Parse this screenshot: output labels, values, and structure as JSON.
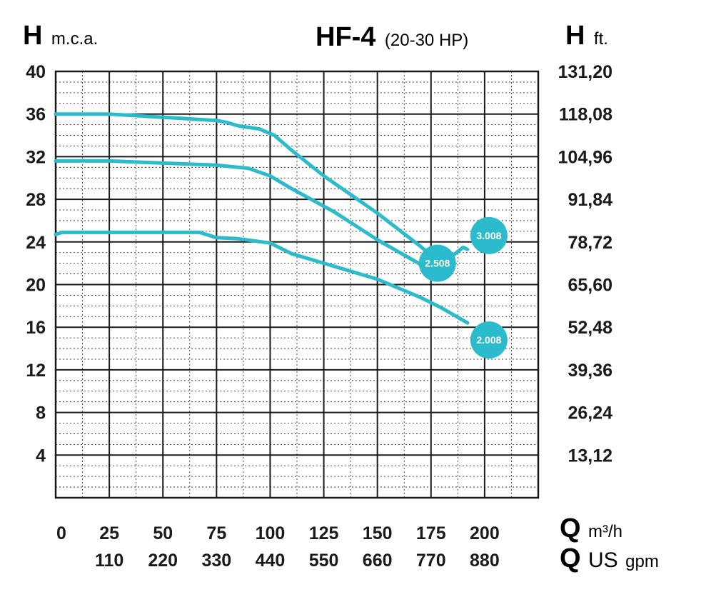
{
  "header": {
    "left_axis_letter": "H",
    "left_axis_unit": "m.c.a.",
    "title": "HF-4",
    "subtitle": "(20-30 HP)",
    "right_axis_letter": "H",
    "right_axis_unit": "ft."
  },
  "footer": {
    "q_letter": "Q",
    "q_unit_1": "m³/h",
    "q_unit_2_main": "US",
    "q_unit_2_small": "gpm"
  },
  "colors": {
    "curve": "#2bbbcc",
    "grid": "#1a1a1a",
    "text": "#1a1a1a"
  },
  "chart_data": {
    "type": "line",
    "title": "HF-4 (20-30 HP)",
    "xlabel": "Q m³/h",
    "xlabel_secondary": "Q US gpm",
    "ylabel": "H m.c.a.",
    "ylabel_right": "H ft.",
    "xlim": [
      0,
      225
    ],
    "ylim": [
      0,
      40
    ],
    "grid": true,
    "x_ticks": [
      {
        "value": 0,
        "label": "0"
      },
      {
        "value": 25,
        "label": "25"
      },
      {
        "value": 50,
        "label": "50"
      },
      {
        "value": 75,
        "label": "75"
      },
      {
        "value": 100,
        "label": "100"
      },
      {
        "value": 125,
        "label": "125"
      },
      {
        "value": 150,
        "label": "150"
      },
      {
        "value": 175,
        "label": "175"
      },
      {
        "value": 200,
        "label": "200"
      }
    ],
    "x_ticks_secondary": [
      {
        "value": 25,
        "label": "110"
      },
      {
        "value": 50,
        "label": "220"
      },
      {
        "value": 75,
        "label": "330"
      },
      {
        "value": 100,
        "label": "440"
      },
      {
        "value": 125,
        "label": "550"
      },
      {
        "value": 150,
        "label": "660"
      },
      {
        "value": 175,
        "label": "770"
      },
      {
        "value": 200,
        "label": "880"
      }
    ],
    "y_ticks_left": [
      {
        "value": 4,
        "label": "4"
      },
      {
        "value": 8,
        "label": "8"
      },
      {
        "value": 12,
        "label": "12"
      },
      {
        "value": 16,
        "label": "16"
      },
      {
        "value": 20,
        "label": "20"
      },
      {
        "value": 24,
        "label": "24"
      },
      {
        "value": 28,
        "label": "28"
      },
      {
        "value": 32,
        "label": "32"
      },
      {
        "value": 36,
        "label": "36"
      },
      {
        "value": 40,
        "label": "40"
      }
    ],
    "y_ticks_right": [
      {
        "value": 4,
        "label": "13,12"
      },
      {
        "value": 8,
        "label": "26,24"
      },
      {
        "value": 12,
        "label": "39,36"
      },
      {
        "value": 16,
        "label": "52,48"
      },
      {
        "value": 20,
        "label": "65,60"
      },
      {
        "value": 24,
        "label": "78,72"
      },
      {
        "value": 28,
        "label": "91,84"
      },
      {
        "value": 32,
        "label": "104,96"
      },
      {
        "value": 36,
        "label": "118,08"
      },
      {
        "value": 40,
        "label": "131,20"
      }
    ],
    "series": [
      {
        "name": "3.008",
        "label_point": [
          202,
          24.6
        ],
        "points": [
          [
            0,
            36
          ],
          [
            25,
            36
          ],
          [
            50,
            35.7
          ],
          [
            75,
            35.4
          ],
          [
            80,
            35.2
          ],
          [
            85,
            34.9
          ],
          [
            95,
            34.6
          ],
          [
            102,
            34
          ],
          [
            110,
            32.6
          ],
          [
            125,
            30.2
          ],
          [
            150,
            26.7
          ],
          [
            170,
            23.6
          ],
          [
            180,
            21.9
          ],
          [
            190,
            23.5
          ],
          [
            192,
            23.3
          ]
        ]
      },
      {
        "name": "2.508",
        "label_point": [
          178,
          22
        ],
        "points": [
          [
            0,
            31.6
          ],
          [
            25,
            31.6
          ],
          [
            50,
            31.4
          ],
          [
            75,
            31.2
          ],
          [
            90,
            30.9
          ],
          [
            100,
            30.2
          ],
          [
            110,
            29
          ],
          [
            130,
            26.8
          ],
          [
            150,
            24.2
          ],
          [
            170,
            21.9
          ]
        ]
      },
      {
        "name": "2.008",
        "label_point": [
          202,
          14.8
        ],
        "points": [
          [
            0,
            24.7
          ],
          [
            3,
            24.9
          ],
          [
            25,
            24.9
          ],
          [
            50,
            24.9
          ],
          [
            67,
            24.9
          ],
          [
            75,
            24.4
          ],
          [
            85,
            24.3
          ],
          [
            100,
            23.9
          ],
          [
            110,
            22.9
          ],
          [
            125,
            22
          ],
          [
            150,
            20.5
          ],
          [
            170,
            18.8
          ],
          [
            180,
            17.8
          ],
          [
            192,
            16.4
          ]
        ]
      }
    ]
  }
}
